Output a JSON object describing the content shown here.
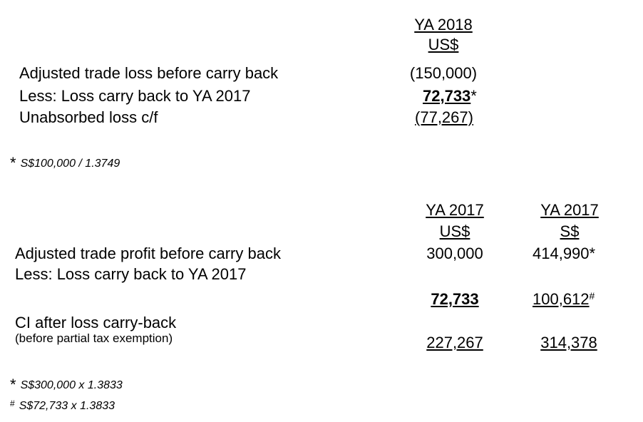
{
  "table1": {
    "col_year": "YA 2018",
    "col_currency": "US$",
    "rows": [
      {
        "label": "Adjusted trade loss before carry back",
        "value": "(150,000)"
      },
      {
        "label": "Less: Loss carry back to YA 2017",
        "value": "72,733",
        "mark": "*"
      },
      {
        "label": "Unabsorbed loss c/f",
        "value": "(77,267)"
      }
    ],
    "footnote_symbol": "*",
    "footnote_text": "S$100,000 / 1.3749"
  },
  "table2": {
    "col1_year": "YA 2017",
    "col1_currency": "US$",
    "col2_year": "YA 2017",
    "col2_currency": "S$",
    "row1_label": "Adjusted trade profit before carry back",
    "row1_val1": "300,000",
    "row1_val2": "414,990",
    "row1_mark": "*",
    "row2_label": "Less: Loss carry back to YA 2017",
    "row2_val1": "72,733",
    "row2_val2": "100,612",
    "row2_mark": "#",
    "row3_label": "CI after loss carry-back",
    "row3_sublabel": "(before partial tax exemption)",
    "row3_val1": "227,267",
    "row3_val2": "314,378",
    "footnotes": [
      {
        "symbol": "*",
        "text": "S$300,000 x 1.3833"
      },
      {
        "symbol": "#",
        "text": "S$72,733 x 1.3833"
      }
    ]
  }
}
